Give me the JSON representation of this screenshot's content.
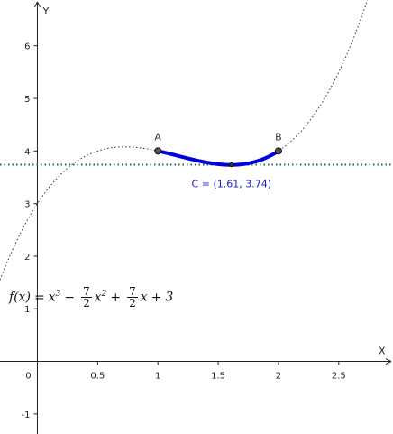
{
  "chart_data": {
    "type": "line",
    "title": "",
    "xlabel": "X",
    "ylabel": "Y",
    "xlim": [
      -0.31,
      2.95
    ],
    "ylim": [
      -1.38,
      6.87
    ],
    "x_ticks": [
      0.5,
      1,
      1.5,
      2,
      2.5
    ],
    "x_tick_labels": [
      "0.5",
      "1",
      "1.5",
      "2",
      "2.5"
    ],
    "y_ticks": [
      -1,
      1,
      2,
      3,
      4,
      5,
      6
    ],
    "y_tick_labels": [
      "-1",
      "1",
      "2",
      "3",
      "4",
      "5",
      "6"
    ],
    "origin_label": "0",
    "function": {
      "name": "f",
      "coefficients": [
        1,
        -3.5,
        3.5,
        3
      ],
      "style": "dotted",
      "color": "#333333"
    },
    "highlighted_segment": {
      "x_from": 1,
      "x_to": 2,
      "color": "#0000dd"
    },
    "horizontal_line": {
      "y": 3.74,
      "color": "#1a6b3a",
      "style": "dotted"
    },
    "points": [
      {
        "label": "A",
        "x": 1,
        "y": 4
      },
      {
        "label": "B",
        "x": 2,
        "y": 4
      },
      {
        "label": "",
        "x": 1.61,
        "y": 3.74
      }
    ],
    "annotations": {
      "c_label": "C = (1.61, 3.74)",
      "formula": {
        "lhs": "f(x)",
        "eq": "=",
        "t1": "x",
        "t1_exp": "3",
        "minus": "−",
        "num1": "7",
        "den1": "2",
        "t2": "x",
        "t2_exp": "2",
        "plus1": "+",
        "num2": "7",
        "den2": "2",
        "t3": "x",
        "plus2": "+",
        "const": "3"
      }
    }
  }
}
